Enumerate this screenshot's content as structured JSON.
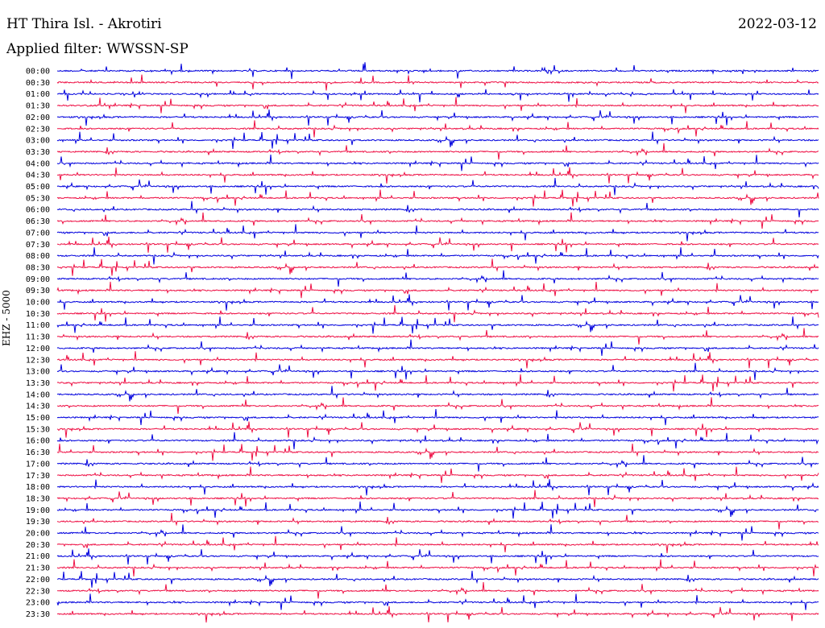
{
  "header": {
    "station": "HT Thira Isl. - Akrotiri",
    "date": "2022-03-12",
    "filter": "Applied filter: WWSSN-SP"
  },
  "axis": {
    "ylabel": "EHZ - 5000"
  },
  "colors": {
    "trace_even": "#0000dd",
    "trace_odd": "#ee0f44",
    "background": "#ffffff"
  },
  "chart_data": {
    "type": "helicorder",
    "time_labels": [
      "00:00",
      "00:30",
      "01:00",
      "01:30",
      "02:00",
      "02:30",
      "03:00",
      "03:30",
      "04:00",
      "04:30",
      "05:00",
      "05:30",
      "06:00",
      "06:30",
      "07:00",
      "07:30",
      "08:00",
      "08:30",
      "09:00",
      "09:30",
      "10:00",
      "10:30",
      "11:00",
      "11:30",
      "12:00",
      "12:30",
      "13:00",
      "13:30",
      "14:00",
      "14:30",
      "15:00",
      "15:30",
      "16:00",
      "16:30",
      "17:00",
      "17:30",
      "18:00",
      "18:30",
      "19:00",
      "19:30",
      "20:00",
      "20:30",
      "21:00",
      "21:30",
      "22:00",
      "22:30",
      "23:00",
      "23:30"
    ],
    "line_minutes": 30,
    "color_cycle": [
      "blue",
      "red"
    ]
  }
}
